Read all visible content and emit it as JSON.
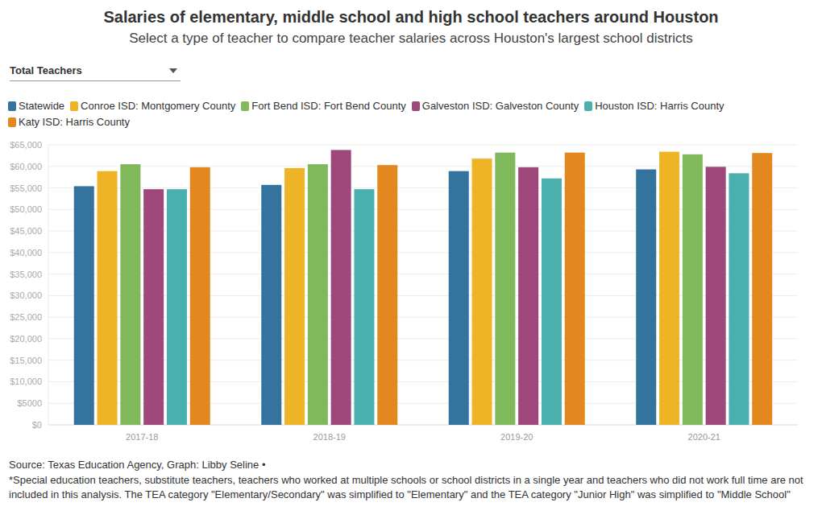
{
  "chart_data": {
    "type": "bar",
    "title": "Salaries of elementary, middle school and high school teachers around Houston",
    "subtitle": "Select a type of teacher to compare teacher salaries across Houston's largest school districts",
    "selector_label": "Total Teachers",
    "source": "Source: Texas Education Agency, Graph: Libby Seline •",
    "note": "*Special education teachers, substitute teachers, teachers who worked at multiple schools or school districts in a single year and teachers who did not work full time are not included in this analysis. The TEA category \"Elementary/Secondary\" was simplified to \"Elementary\" and the TEA category \"Junior High\" was simplified to \"Middle School\"",
    "categories": [
      "2017-18",
      "2018-19",
      "2019-20",
      "2020-21"
    ],
    "series": [
      {
        "name": "Statewide",
        "color": "#35739f",
        "values": [
          55400,
          55700,
          58900,
          59300
        ]
      },
      {
        "name": "Conroe ISD: Montgomery County",
        "color": "#efb425",
        "values": [
          58900,
          59600,
          61800,
          63400
        ]
      },
      {
        "name": "Fort Bend ISD: Fort Bend County",
        "color": "#80b95b",
        "values": [
          60500,
          60500,
          63200,
          62800
        ]
      },
      {
        "name": "Galveston ISD: Galveston County",
        "color": "#9d477b",
        "values": [
          54700,
          63800,
          59800,
          59900
        ]
      },
      {
        "name": "Houston ISD: Harris County",
        "color": "#4bafad",
        "values": [
          54700,
          54700,
          57200,
          58400
        ]
      },
      {
        "name": "Katy ISD: Harris County",
        "color": "#e3881f",
        "values": [
          59800,
          60300,
          63200,
          63100
        ]
      }
    ],
    "ylim": [
      0,
      65000
    ],
    "yticks": [
      {
        "value": 0,
        "label": "$0"
      },
      {
        "value": 5000,
        "label": "$5000"
      },
      {
        "value": 10000,
        "label": "$10,000"
      },
      {
        "value": 15000,
        "label": "$15,000"
      },
      {
        "value": 20000,
        "label": "$20,000"
      },
      {
        "value": 25000,
        "label": "$25,000"
      },
      {
        "value": 30000,
        "label": "$30,000"
      },
      {
        "value": 35000,
        "label": "$35,000"
      },
      {
        "value": 40000,
        "label": "$40,000"
      },
      {
        "value": 45000,
        "label": "$45,000"
      },
      {
        "value": 50000,
        "label": "$50,000"
      },
      {
        "value": 55000,
        "label": "$55,000"
      },
      {
        "value": 60000,
        "label": "$60,000"
      },
      {
        "value": 65000,
        "label": "$65,000"
      }
    ],
    "grid": true,
    "legend": "top"
  }
}
